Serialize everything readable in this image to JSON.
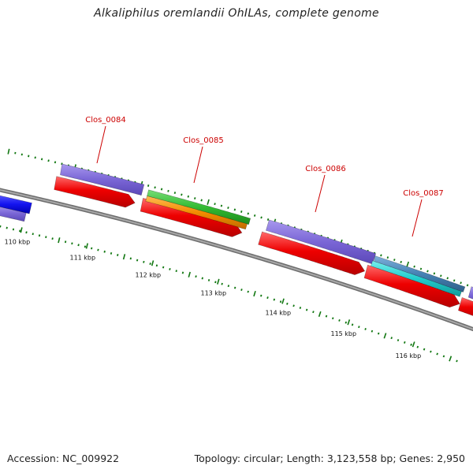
{
  "title": "Alkaliphilus oremlandii OhILAs, complete genome",
  "footer": {
    "accession": "Accession: NC_009922",
    "summary": "Topology: circular; Length: 3,123,558 bp; Genes: 2,950"
  },
  "colors": {
    "backbone": "#8a8a8a",
    "tick": "#117711",
    "label": "#cc0000",
    "cds_red": "#ee0000",
    "gene_purple": "#7a66d6",
    "gene_blue": "#1414f0",
    "gene_green": "#33bb33",
    "gene_orange": "#f28c00",
    "gene_steel": "#4682b4",
    "gene_cyan": "#22cccc"
  },
  "scale_labels": [
    "110 kbp",
    "111 kbp",
    "112 kbp",
    "113 kbp",
    "114 kbp",
    "115 kbp",
    "116 kbp"
  ],
  "gene_labels": [
    "Clos_0084",
    "Clos_0085",
    "Clos_0086",
    "Clos_0087"
  ]
}
